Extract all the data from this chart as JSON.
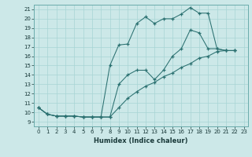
{
  "xlabel": "Humidex (Indice chaleur)",
  "xlim": [
    -0.5,
    23.5
  ],
  "ylim": [
    8.5,
    21.5
  ],
  "yticks": [
    9,
    10,
    11,
    12,
    13,
    14,
    15,
    16,
    17,
    18,
    19,
    20,
    21
  ],
  "xticks": [
    0,
    1,
    2,
    3,
    4,
    5,
    6,
    7,
    8,
    9,
    10,
    11,
    12,
    13,
    14,
    15,
    16,
    17,
    18,
    19,
    20,
    21,
    22,
    23
  ],
  "xtick_labels": [
    "0",
    "1",
    "2",
    "3",
    "4",
    "5",
    "6",
    "7",
    "8",
    "9",
    "10",
    "11",
    "12",
    "13",
    "14",
    "15",
    "16",
    "17",
    "18",
    "19",
    "20",
    "21",
    "22",
    "23"
  ],
  "bg_color": "#cce8e8",
  "line_color": "#2a7070",
  "grid_color": "#a8d4d4",
  "line1_x": [
    0,
    1,
    2,
    3,
    4,
    5,
    6,
    7,
    8,
    9,
    10,
    11,
    12,
    13,
    14,
    15,
    16,
    17,
    18,
    19,
    20,
    21,
    22
  ],
  "line1_y": [
    10.5,
    9.8,
    9.6,
    9.6,
    9.6,
    9.5,
    9.5,
    9.5,
    15.0,
    17.2,
    17.3,
    19.5,
    20.2,
    19.5,
    20.0,
    20.0,
    20.5,
    21.2,
    20.6,
    20.6,
    16.8,
    16.6,
    16.6
  ],
  "line2_x": [
    0,
    1,
    2,
    3,
    4,
    5,
    6,
    7,
    8,
    9,
    10,
    11,
    12,
    13,
    14,
    15,
    16,
    17,
    18,
    19,
    20,
    21,
    22
  ],
  "line2_y": [
    10.5,
    9.8,
    9.6,
    9.6,
    9.6,
    9.5,
    9.5,
    9.5,
    9.5,
    13.0,
    14.0,
    14.5,
    14.5,
    13.5,
    14.5,
    16.0,
    16.8,
    18.8,
    18.5,
    16.8,
    16.8,
    16.6,
    16.6
  ],
  "line3_x": [
    0,
    1,
    2,
    3,
    4,
    5,
    6,
    7,
    8,
    9,
    10,
    11,
    12,
    13,
    14,
    15,
    16,
    17,
    18,
    19,
    20,
    21,
    22
  ],
  "line3_y": [
    10.5,
    9.8,
    9.6,
    9.6,
    9.6,
    9.5,
    9.5,
    9.5,
    9.5,
    10.5,
    11.5,
    12.2,
    12.8,
    13.2,
    13.8,
    14.2,
    14.8,
    15.2,
    15.8,
    16.0,
    16.5,
    16.6,
    16.6
  ]
}
